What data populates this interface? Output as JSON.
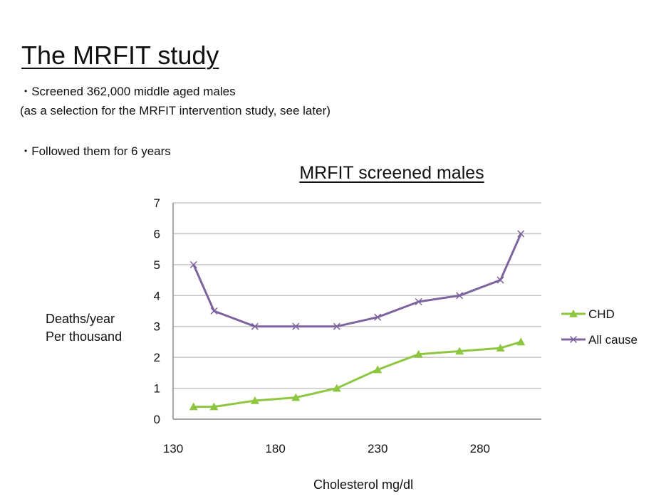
{
  "slide": {
    "title": "The MRFIT study",
    "bullets": [
      {
        "dot": "•",
        "line1": "Screened 362,000 middle aged males",
        "line2": "(as a selection for the MRFIT intervention study, see later)"
      },
      {
        "dot": "•",
        "line1": "Followed them for 6 years"
      }
    ]
  },
  "chart_data": {
    "type": "line",
    "title": "MRFIT screened males",
    "ylabel_lines": [
      "Deaths/year",
      "Per thousand"
    ],
    "xlabel": "Cholesterol mg/dl",
    "xlim": [
      130,
      310
    ],
    "ylim": [
      0,
      7
    ],
    "xticks": [
      130,
      180,
      230,
      280
    ],
    "yticks": [
      0,
      1,
      2,
      3,
      4,
      5,
      6,
      7
    ],
    "grid": true,
    "legend_position": "right",
    "series": [
      {
        "name": "CHD",
        "color": "#8dc63f",
        "marker": "triangle",
        "x": [
          140,
          150,
          170,
          190,
          210,
          230,
          250,
          270,
          290,
          300
        ],
        "y": [
          0.4,
          0.4,
          0.6,
          0.7,
          1.0,
          1.6,
          2.1,
          2.2,
          2.3,
          2.5
        ]
      },
      {
        "name": "All cause",
        "color": "#7e649e",
        "marker": "x",
        "x": [
          140,
          150,
          170,
          190,
          210,
          230,
          250,
          270,
          290,
          300
        ],
        "y": [
          5.0,
          3.5,
          3.0,
          3.0,
          3.0,
          3.3,
          3.8,
          4.0,
          4.5,
          6.0
        ]
      }
    ]
  }
}
